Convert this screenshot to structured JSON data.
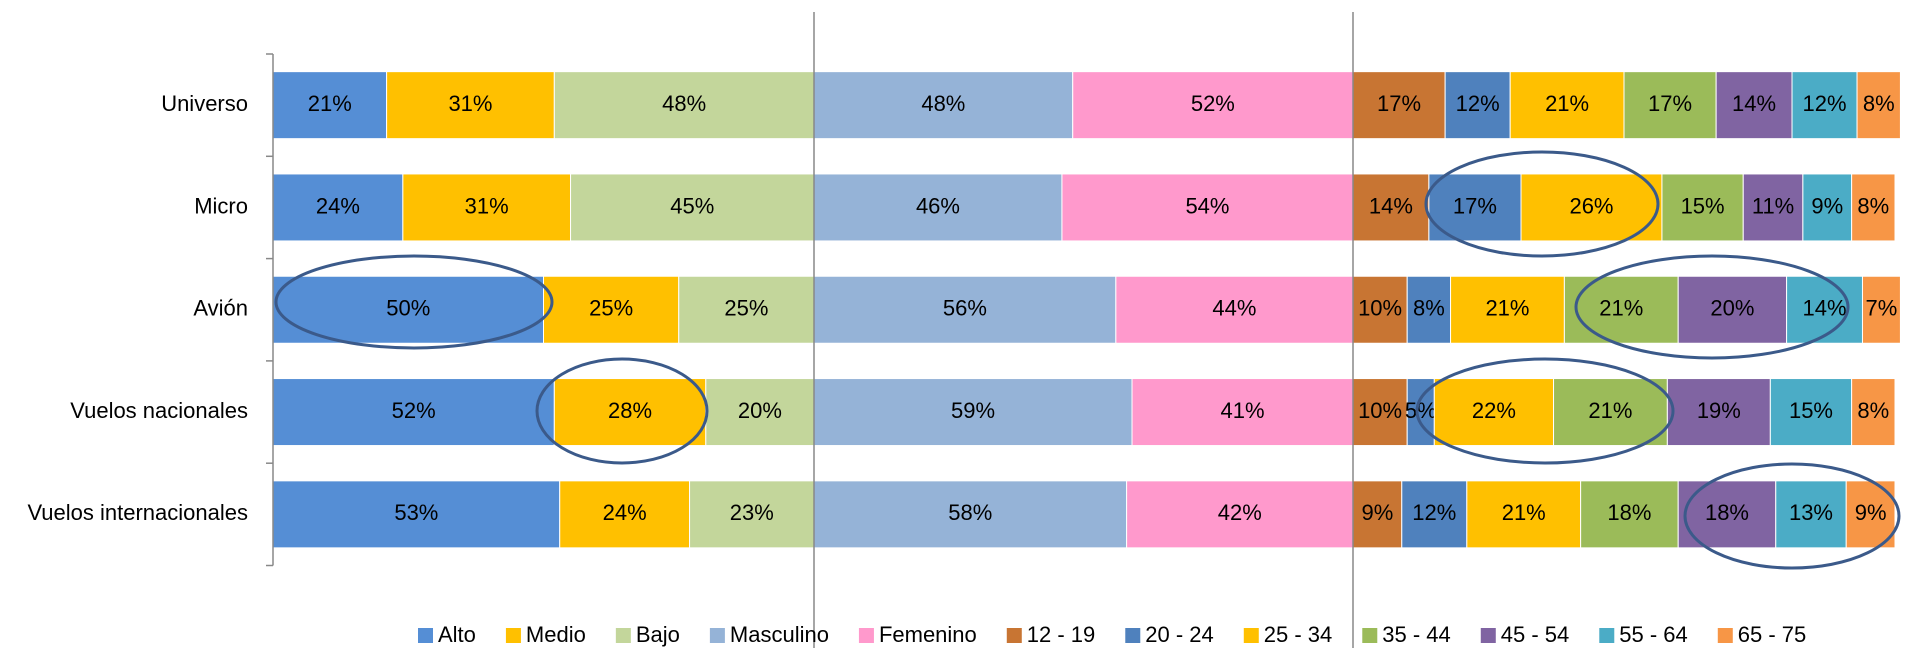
{
  "chart_data": [
    {
      "type": "bar",
      "orientation": "horizontal",
      "stacked": true,
      "categories": [
        "Universo",
        "Micro",
        "Avión",
        "Vuelos nacionales",
        "Vuelos internacionales"
      ],
      "xlim": [
        0,
        100
      ],
      "series": [
        {
          "name": "Alto",
          "color": "#558ed5",
          "values": [
            21,
            24,
            50,
            52,
            53
          ],
          "value_labels": [
            "21%",
            "24%",
            "50%",
            "52%",
            "53%"
          ]
        },
        {
          "name": "Medio",
          "color": "#ffc000",
          "values": [
            31,
            31,
            25,
            28,
            24
          ],
          "value_labels": [
            "31%",
            "31%",
            "25%",
            "28%",
            "24%"
          ]
        },
        {
          "name": "Bajo",
          "color": "#c3d69b",
          "values": [
            48,
            45,
            25,
            20,
            23
          ],
          "value_labels": [
            "48%",
            "45%",
            "25%",
            "20%",
            "23%"
          ]
        }
      ]
    },
    {
      "type": "bar",
      "orientation": "horizontal",
      "stacked": true,
      "xlim": [
        0,
        100
      ],
      "series": [
        {
          "name": "Masculino",
          "color": "#95b3d7",
          "values": [
            48,
            46,
            56,
            59,
            58
          ],
          "value_labels": [
            "48%",
            "46%",
            "56%",
            "59%",
            "58%"
          ]
        },
        {
          "name": "Femenino",
          "color": "#ff99cc",
          "values": [
            52,
            54,
            44,
            41,
            42
          ],
          "value_labels": [
            "52%",
            "54%",
            "44%",
            "41%",
            "42%"
          ]
        }
      ]
    },
    {
      "type": "bar",
      "orientation": "horizontal",
      "stacked": true,
      "xlim": [
        0,
        100
      ],
      "series": [
        {
          "name": "12 - 19",
          "color": "#c87533",
          "values": [
            17,
            14,
            10,
            10,
            9
          ],
          "value_labels": [
            "17%",
            "14%",
            "10%",
            "10%",
            "9%"
          ]
        },
        {
          "name": "20 - 24",
          "color": "#4f81bd",
          "values": [
            12,
            17,
            8,
            5,
            12
          ],
          "value_labels": [
            "12%",
            "17%",
            "8%",
            "5%",
            "12%"
          ]
        },
        {
          "name": "25 - 34",
          "color": "#ffc000",
          "values": [
            21,
            26,
            21,
            22,
            21
          ],
          "value_labels": [
            "21%",
            "26%",
            "21%",
            "22%",
            "21%"
          ]
        },
        {
          "name": "35 - 44",
          "color": "#9bbb59",
          "values": [
            17,
            15,
            21,
            21,
            18
          ],
          "value_labels": [
            "17%",
            "15%",
            "21%",
            "21%",
            "18%"
          ]
        },
        {
          "name": "45 - 54",
          "color": "#8064a2",
          "values": [
            14,
            11,
            20,
            19,
            18
          ],
          "value_labels": [
            "14%",
            "11%",
            "20%",
            "19%",
            "18%"
          ]
        },
        {
          "name": "55 - 64",
          "color": "#4bacc6",
          "values": [
            12,
            9,
            14,
            15,
            13
          ],
          "value_labels": [
            "12%",
            "9%",
            "14%",
            "15%",
            "13%"
          ]
        },
        {
          "name": "65 - 75",
          "color": "#f79646",
          "values": [
            8,
            8,
            7,
            8,
            9
          ],
          "value_labels": [
            "8%",
            "8%",
            "7%",
            "8%",
            "9%"
          ]
        }
      ]
    }
  ]
}
